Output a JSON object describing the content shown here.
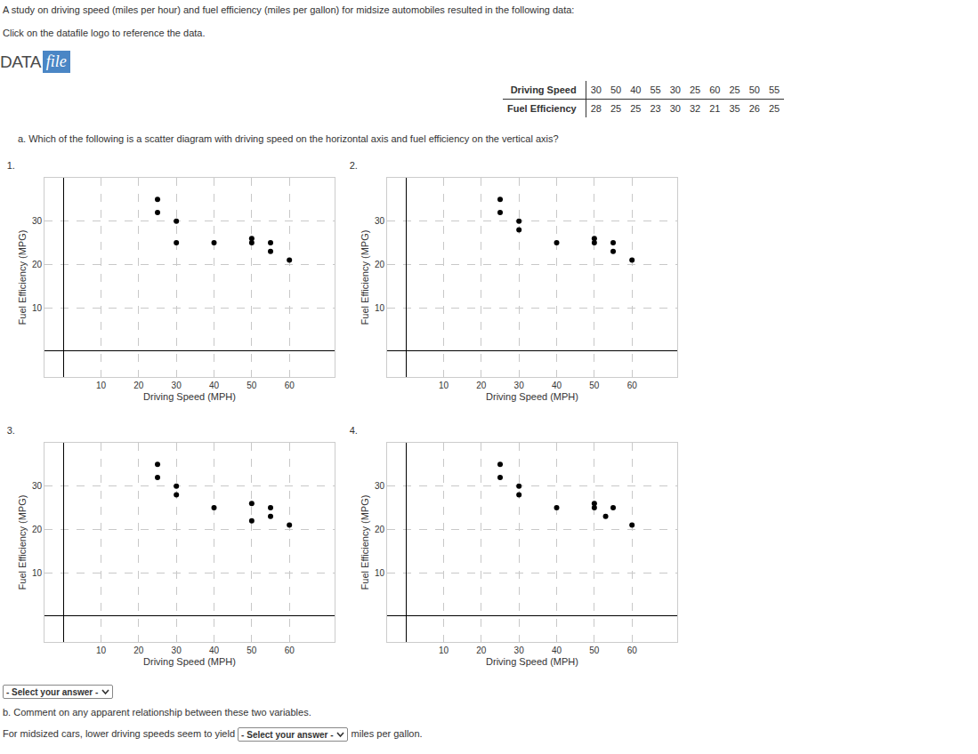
{
  "intro": {
    "lines": [
      "A study on driving speed (miles per hour) and fuel efficiency (miles per gallon) for midsize automobiles resulted in the following data:",
      "Click on the datafile logo to reference the data."
    ]
  },
  "datafile_logo": {
    "left": "DATA",
    "right": "file"
  },
  "table": {
    "rows": [
      {
        "label": "Driving Speed",
        "values": [
          30,
          50,
          40,
          55,
          30,
          25,
          60,
          25,
          50,
          55
        ]
      },
      {
        "label": "Fuel Efficiency",
        "values": [
          28,
          25,
          25,
          23,
          30,
          32,
          21,
          35,
          26,
          25
        ]
      }
    ]
  },
  "question_a": {
    "text": "a. Which of the following is a scatter diagram with driving speed on the horizontal axis and fuel efficiency on the vertical axis?",
    "answer_select": "- Select your answer -"
  },
  "question_b": {
    "text": "b. Comment on any apparent relationship between these two variables.",
    "sentence_before": "For midsized cars, lower driving speeds seem to yield",
    "answer_select": "- Select your answer -",
    "sentence_after": "miles per gallon."
  },
  "chart_data": [
    {
      "type": "scatter",
      "title": "1.",
      "x_label": "Driving Speed (MPH)",
      "y_label": "Fuel Efficiency (MPG)",
      "x": [
        25,
        25,
        30,
        30,
        40,
        50,
        50,
        55,
        55,
        60
      ],
      "values": [
        35,
        32,
        30,
        25,
        25,
        26,
        25,
        25,
        23,
        21
      ],
      "xlim": [
        -5,
        72
      ],
      "ylim": [
        -6,
        40
      ],
      "xticks": [
        10,
        20,
        30,
        40,
        50,
        60
      ],
      "yticks": [
        10,
        20,
        30
      ],
      "grid": true,
      "color": "#000000",
      "marker": "circle"
    },
    {
      "type": "scatter",
      "title": "2.",
      "x_label": "Driving Speed (MPH)",
      "y_label": "Fuel Efficiency (MPG)",
      "x": [
        25,
        25,
        30,
        30,
        40,
        50,
        50,
        55,
        55,
        60
      ],
      "values": [
        35,
        32,
        30,
        28,
        25,
        26,
        25,
        25,
        23,
        21
      ],
      "xlim": [
        -5,
        72
      ],
      "ylim": [
        -6,
        40
      ],
      "xticks": [
        10,
        20,
        30,
        40,
        50,
        60
      ],
      "yticks": [
        10,
        20,
        30
      ],
      "grid": true,
      "color": "#000000",
      "marker": "circle"
    },
    {
      "type": "scatter",
      "title": "3.",
      "x_label": "Driving Speed (MPH)",
      "y_label": "Fuel Efficiency (MPG)",
      "x": [
        25,
        25,
        30,
        30,
        40,
        50,
        50,
        55,
        55,
        60
      ],
      "values": [
        35,
        32,
        30,
        28,
        25,
        26,
        22,
        25,
        23,
        21
      ],
      "xlim": [
        -5,
        72
      ],
      "ylim": [
        -6,
        40
      ],
      "xticks": [
        10,
        20,
        30,
        40,
        50,
        60
      ],
      "yticks": [
        10,
        20,
        30
      ],
      "grid": true,
      "color": "#000000",
      "marker": "circle"
    },
    {
      "type": "scatter",
      "title": "4.",
      "x_label": "Driving Speed (MPH)",
      "y_label": "Fuel Efficiency (MPG)",
      "x": [
        25,
        25,
        30,
        30,
        40,
        50,
        50,
        53,
        55,
        60
      ],
      "values": [
        35,
        32,
        30,
        28,
        25,
        26,
        25,
        23,
        25,
        21
      ],
      "xlim": [
        -5,
        72
      ],
      "ylim": [
        -6,
        40
      ],
      "xticks": [
        10,
        20,
        30,
        40,
        50,
        60
      ],
      "yticks": [
        10,
        20,
        30
      ],
      "grid": true,
      "color": "#000000",
      "marker": "circle"
    }
  ]
}
